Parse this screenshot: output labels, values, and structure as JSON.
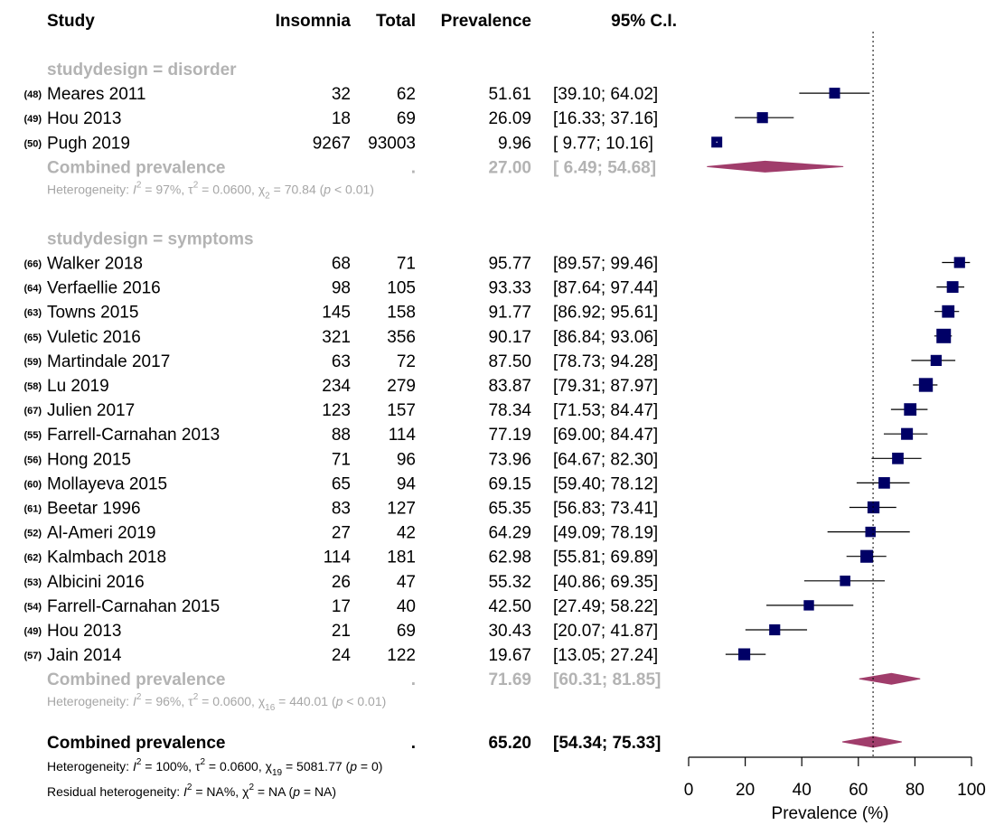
{
  "headers": {
    "study": "Study",
    "events": "Insomnia",
    "total": "Total",
    "estimate": "Prevalence",
    "ci": "95% C.I."
  },
  "colors": {
    "point": "#000066",
    "diamond": "#a03d6b",
    "subgroup_text": "#b3b3b3",
    "heterogeneity_text": "#a6a6a6"
  },
  "chart_data": {
    "type": "forest",
    "xlabel": "Prevalence (%)",
    "xlim": [
      0,
      100
    ],
    "xticks": [
      0,
      20,
      40,
      60,
      80,
      100
    ],
    "reference_line": 65.2,
    "subgroups": [
      {
        "label": "studydesign = disorder",
        "studies": [
          {
            "ref": "(48)",
            "name": "Meares 2011",
            "events": "32",
            "total": "62",
            "prev": 51.61,
            "prev_text": "51.61",
            "ci_text": "[39.10; 64.02]",
            "lo": 39.1,
            "hi": 64.02,
            "n": 62
          },
          {
            "ref": "(49)",
            "name": "Hou 2013",
            "events": "18",
            "total": "69",
            "prev": 26.09,
            "prev_text": "26.09",
            "ci_text": "[16.33; 37.16]",
            "lo": 16.33,
            "hi": 37.16,
            "n": 69
          },
          {
            "ref": "(50)",
            "name": "Pugh 2019",
            "events": "9267",
            "total": "93003",
            "prev": 9.96,
            "prev_text": "9.96",
            "ci_text": "[ 9.77; 10.16]",
            "lo": 9.77,
            "hi": 10.16,
            "n": 93003
          }
        ],
        "combined": {
          "label": "Combined prevalence",
          "dot": ".",
          "prev": 27.0,
          "prev_text": "27.00",
          "ci_text": "[ 6.49; 54.68]",
          "lo": 6.49,
          "hi": 54.68
        },
        "heterogeneity": {
          "i2": "97%",
          "tau2": "0.0600",
          "chi_df": "2",
          "chi": "70.84",
          "p": "< 0.01"
        }
      },
      {
        "label": "studydesign = symptoms",
        "studies": [
          {
            "ref": "(66)",
            "name": "Walker 2018",
            "events": "68",
            "total": "71",
            "prev": 95.77,
            "prev_text": "95.77",
            "ci_text": "[89.57; 99.46]",
            "lo": 89.57,
            "hi": 99.46,
            "n": 71
          },
          {
            "ref": "(64)",
            "name": "Verfaellie 2016",
            "events": "98",
            "total": "105",
            "prev": 93.33,
            "prev_text": "93.33",
            "ci_text": "[87.64; 97.44]",
            "lo": 87.64,
            "hi": 97.44,
            "n": 105
          },
          {
            "ref": "(63)",
            "name": "Towns 2015",
            "events": "145",
            "total": "158",
            "prev": 91.77,
            "prev_text": "91.77",
            "ci_text": "[86.92; 95.61]",
            "lo": 86.92,
            "hi": 95.61,
            "n": 158
          },
          {
            "ref": "(65)",
            "name": "Vuletic 2016",
            "events": "321",
            "total": "356",
            "prev": 90.17,
            "prev_text": "90.17",
            "ci_text": "[86.84; 93.06]",
            "lo": 86.84,
            "hi": 93.06,
            "n": 356
          },
          {
            "ref": "(59)",
            "name": "Martindale 2017",
            "events": "63",
            "total": "72",
            "prev": 87.5,
            "prev_text": "87.50",
            "ci_text": "[78.73; 94.28]",
            "lo": 78.73,
            "hi": 94.28,
            "n": 72
          },
          {
            "ref": "(58)",
            "name": "Lu 2019",
            "events": "234",
            "total": "279",
            "prev": 83.87,
            "prev_text": "83.87",
            "ci_text": "[79.31; 87.97]",
            "lo": 79.31,
            "hi": 87.97,
            "n": 279
          },
          {
            "ref": "(67)",
            "name": "Julien 2017",
            "events": "123",
            "total": "157",
            "prev": 78.34,
            "prev_text": "78.34",
            "ci_text": "[71.53; 84.47]",
            "lo": 71.53,
            "hi": 84.47,
            "n": 157
          },
          {
            "ref": "(55)",
            "name": "Farrell-Carnahan 2013",
            "events": "88",
            "total": "114",
            "prev": 77.19,
            "prev_text": "77.19",
            "ci_text": "[69.00; 84.47]",
            "lo": 69.0,
            "hi": 84.47,
            "n": 114
          },
          {
            "ref": "(56)",
            "name": "Hong 2015",
            "events": "71",
            "total": "96",
            "prev": 73.96,
            "prev_text": "73.96",
            "ci_text": "[64.67; 82.30]",
            "lo": 64.67,
            "hi": 82.3,
            "n": 96
          },
          {
            "ref": "(60)",
            "name": "Mollayeva 2015",
            "events": "65",
            "total": "94",
            "prev": 69.15,
            "prev_text": "69.15",
            "ci_text": "[59.40; 78.12]",
            "lo": 59.4,
            "hi": 78.12,
            "n": 94
          },
          {
            "ref": "(61)",
            "name": "Beetar 1996",
            "events": "83",
            "total": "127",
            "prev": 65.35,
            "prev_text": "65.35",
            "ci_text": "[56.83; 73.41]",
            "lo": 56.83,
            "hi": 73.41,
            "n": 127
          },
          {
            "ref": "(52)",
            "name": "Al-Ameri 2019",
            "events": "27",
            "total": "42",
            "prev": 64.29,
            "prev_text": "64.29",
            "ci_text": "[49.09; 78.19]",
            "lo": 49.09,
            "hi": 78.19,
            "n": 42
          },
          {
            "ref": "(62)",
            "name": "Kalmbach 2018",
            "events": "114",
            "total": "181",
            "prev": 62.98,
            "prev_text": "62.98",
            "ci_text": "[55.81; 69.89]",
            "lo": 55.81,
            "hi": 69.89,
            "n": 181
          },
          {
            "ref": "(53)",
            "name": "Albicini 2016",
            "events": "26",
            "total": "47",
            "prev": 55.32,
            "prev_text": "55.32",
            "ci_text": "[40.86; 69.35]",
            "lo": 40.86,
            "hi": 69.35,
            "n": 47
          },
          {
            "ref": "(54)",
            "name": "Farrell-Carnahan 2015",
            "events": "17",
            "total": "40",
            "prev": 42.5,
            "prev_text": "42.50",
            "ci_text": "[27.49; 58.22]",
            "lo": 27.49,
            "hi": 58.22,
            "n": 40
          },
          {
            "ref": "(49)",
            "name": "Hou 2013",
            "events": "21",
            "total": "69",
            "prev": 30.43,
            "prev_text": "30.43",
            "ci_text": "[20.07; 41.87]",
            "lo": 20.07,
            "hi": 41.87,
            "n": 69
          },
          {
            "ref": "(57)",
            "name": "Jain 2014",
            "events": "24",
            "total": "122",
            "prev": 19.67,
            "prev_text": "19.67",
            "ci_text": "[13.05; 27.24]",
            "lo": 13.05,
            "hi": 27.24,
            "n": 122
          }
        ],
        "combined": {
          "label": "Combined prevalence",
          "dot": ".",
          "prev": 71.69,
          "prev_text": "71.69",
          "ci_text": "[60.31; 81.85]",
          "lo": 60.31,
          "hi": 81.85
        },
        "heterogeneity": {
          "i2": "96%",
          "tau2": "0.0600",
          "chi_df": "16",
          "chi": "440.01",
          "p": "< 0.01"
        }
      }
    ],
    "overall": {
      "label": "Combined prevalence",
      "dot": ".",
      "prev": 65.2,
      "prev_text": "65.20",
      "ci_text": "[54.34; 75.33]",
      "lo": 54.34,
      "hi": 75.33,
      "heterogeneity": {
        "i2": "100%",
        "tau2": "0.0600",
        "chi_df": "19",
        "chi": "5081.77",
        "p": "= 0"
      },
      "residual": {
        "i2": "NA%",
        "chi": "NA",
        "p": "= NA"
      }
    }
  }
}
